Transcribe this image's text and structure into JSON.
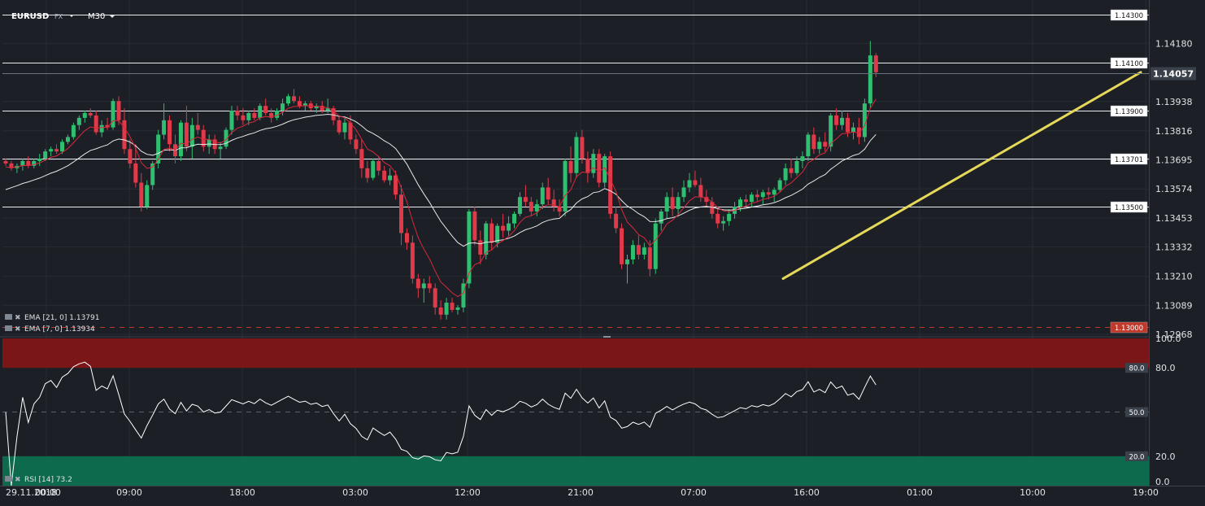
{
  "header": {
    "symbol": "EURUSD",
    "market": "FX",
    "timeframe": "M30"
  },
  "colors": {
    "background": "#1c2026",
    "grid": "#262c33",
    "bull": "#2fbf71",
    "bear": "#e0394a",
    "ema_fast": "#d9283b",
    "ema_slow": "#e8e8e8",
    "trendline": "#e6d95a",
    "rsi_overbought_zone": "#7a1518",
    "rsi_oversold_zone": "#0e6a4c",
    "axis_text": "#dfe3e8"
  },
  "indicators": {
    "ema_slow_label": "EMA [21, 0] 1.13791",
    "ema_fast_label": "EMA [7, 0] 1.13934",
    "rsi_label": "RSI [14] 73.2"
  },
  "chart_data": [
    {
      "type": "candlestick",
      "ylim": [
        1.12968,
        1.143
      ],
      "y_ticks": [
        "1.14180",
        "1.13938",
        "1.13816",
        "1.13695",
        "1.13574",
        "1.13453",
        "1.13332",
        "1.13210",
        "1.13089",
        "1.12968"
      ],
      "current_price": "1.14057",
      "levels": [
        {
          "value": 1.143,
          "label": "1.14300",
          "style": "solid"
        },
        {
          "value": 1.141,
          "label": "1.14100",
          "style": "solid"
        },
        {
          "value": 1.139,
          "label": "1.13900",
          "style": "solid"
        },
        {
          "value": 1.13701,
          "label": "1.13701",
          "style": "solid"
        },
        {
          "value": 1.135,
          "label": "1.13500",
          "style": "solid"
        },
        {
          "value": 1.13,
          "label": "1.13000",
          "style": "dashed"
        }
      ],
      "x_ticks": [
        "29.11.2018",
        "00:00",
        "09:00",
        "18:00",
        "03:00",
        "12:00",
        "21:00",
        "07:00",
        "16:00",
        "01:00",
        "10:00",
        "19:00"
      ],
      "trendline": [
        [
          1.132,
          0
        ],
        [
          1.1406,
          1
        ]
      ],
      "ohlc": [
        [
          1.1369,
          1.137,
          1.1367,
          1.1368
        ],
        [
          1.1368,
          1.1369,
          1.1365,
          1.1366
        ],
        [
          1.1366,
          1.1368,
          1.1364,
          1.1367
        ],
        [
          1.1367,
          1.137,
          1.1365,
          1.1369
        ],
        [
          1.1369,
          1.1371,
          1.1366,
          1.1367
        ],
        [
          1.1367,
          1.137,
          1.1366,
          1.1369
        ],
        [
          1.1369,
          1.1372,
          1.1367,
          1.137
        ],
        [
          1.137,
          1.1374,
          1.1369,
          1.1373
        ],
        [
          1.1373,
          1.1375,
          1.1371,
          1.1374
        ],
        [
          1.1374,
          1.1376,
          1.1372,
          1.1373
        ],
        [
          1.1373,
          1.1378,
          1.1372,
          1.1377
        ],
        [
          1.1377,
          1.138,
          1.1376,
          1.1379
        ],
        [
          1.1379,
          1.1385,
          1.1378,
          1.1384
        ],
        [
          1.1384,
          1.1388,
          1.1382,
          1.1387
        ],
        [
          1.1387,
          1.139,
          1.1385,
          1.1389
        ],
        [
          1.1389,
          1.1391,
          1.1387,
          1.1388
        ],
        [
          1.1388,
          1.139,
          1.138,
          1.1381
        ],
        [
          1.1381,
          1.1386,
          1.1379,
          1.1384
        ],
        [
          1.1384,
          1.1387,
          1.1382,
          1.1383
        ],
        [
          1.1383,
          1.1395,
          1.1382,
          1.1394
        ],
        [
          1.1394,
          1.1396,
          1.1384,
          1.1386
        ],
        [
          1.1386,
          1.1391,
          1.1372,
          1.1374
        ],
        [
          1.1374,
          1.1378,
          1.1366,
          1.1368
        ],
        [
          1.1368,
          1.1376,
          1.1358,
          1.136
        ],
        [
          1.136,
          1.1364,
          1.1348,
          1.135
        ],
        [
          1.135,
          1.1361,
          1.1349,
          1.1359
        ],
        [
          1.1359,
          1.1369,
          1.1357,
          1.1368
        ],
        [
          1.1368,
          1.1382,
          1.1366,
          1.138
        ],
        [
          1.138,
          1.1393,
          1.1378,
          1.1386
        ],
        [
          1.1386,
          1.1388,
          1.1373,
          1.1376
        ],
        [
          1.1376,
          1.138,
          1.1368,
          1.1371
        ],
        [
          1.1371,
          1.1386,
          1.1369,
          1.1385
        ],
        [
          1.1385,
          1.1392,
          1.1373,
          1.1375
        ],
        [
          1.1375,
          1.1387,
          1.137,
          1.1384
        ],
        [
          1.1384,
          1.1389,
          1.138,
          1.1382
        ],
        [
          1.1382,
          1.1384,
          1.1373,
          1.1375
        ],
        [
          1.1375,
          1.138,
          1.1372,
          1.1378
        ],
        [
          1.1378,
          1.138,
          1.1372,
          1.1374
        ],
        [
          1.1374,
          1.1377,
          1.137,
          1.1375
        ],
        [
          1.1375,
          1.1383,
          1.1374,
          1.1382
        ],
        [
          1.1382,
          1.1392,
          1.138,
          1.139
        ],
        [
          1.139,
          1.1392,
          1.1386,
          1.1388
        ],
        [
          1.1388,
          1.1391,
          1.1384,
          1.1386
        ],
        [
          1.1386,
          1.139,
          1.1384,
          1.1389
        ],
        [
          1.1389,
          1.1391,
          1.1386,
          1.1387
        ],
        [
          1.1387,
          1.1393,
          1.1386,
          1.1392
        ],
        [
          1.1392,
          1.1395,
          1.1388,
          1.1389
        ],
        [
          1.1389,
          1.1391,
          1.1385,
          1.1387
        ],
        [
          1.1387,
          1.1391,
          1.1386,
          1.139
        ],
        [
          1.139,
          1.1395,
          1.1388,
          1.1393
        ],
        [
          1.1393,
          1.1397,
          1.1392,
          1.1396
        ],
        [
          1.1396,
          1.1399,
          1.1393,
          1.1394
        ],
        [
          1.1394,
          1.1396,
          1.1391,
          1.1392
        ],
        [
          1.1392,
          1.1394,
          1.139,
          1.1393
        ],
        [
          1.1393,
          1.1394,
          1.139,
          1.1391
        ],
        [
          1.1391,
          1.1393,
          1.1389,
          1.1392
        ],
        [
          1.1392,
          1.1394,
          1.1389,
          1.139
        ],
        [
          1.139,
          1.1395,
          1.1389,
          1.1391
        ],
        [
          1.1391,
          1.1392,
          1.1384,
          1.1386
        ],
        [
          1.1386,
          1.1388,
          1.138,
          1.1381
        ],
        [
          1.1381,
          1.1387,
          1.1378,
          1.1385
        ],
        [
          1.1385,
          1.1388,
          1.1376,
          1.1378
        ],
        [
          1.1378,
          1.138,
          1.1372,
          1.1374
        ],
        [
          1.1374,
          1.1378,
          1.1362,
          1.1366
        ],
        [
          1.1366,
          1.1369,
          1.136,
          1.1362
        ],
        [
          1.1362,
          1.137,
          1.1361,
          1.1369
        ],
        [
          1.1369,
          1.1371,
          1.1363,
          1.1365
        ],
        [
          1.1365,
          1.1367,
          1.136,
          1.1361
        ],
        [
          1.1361,
          1.1366,
          1.1359,
          1.1363
        ],
        [
          1.1363,
          1.1365,
          1.1353,
          1.1355
        ],
        [
          1.1355,
          1.1359,
          1.1334,
          1.1339
        ],
        [
          1.1339,
          1.1341,
          1.1332,
          1.1335
        ],
        [
          1.1335,
          1.1338,
          1.1318,
          1.132
        ],
        [
          1.132,
          1.1322,
          1.1312,
          1.1316
        ],
        [
          1.1316,
          1.132,
          1.131,
          1.1318
        ],
        [
          1.1318,
          1.1321,
          1.1314,
          1.1316
        ],
        [
          1.1316,
          1.1318,
          1.1305,
          1.1308
        ],
        [
          1.1308,
          1.1311,
          1.1303,
          1.1305
        ],
        [
          1.1305,
          1.1312,
          1.1303,
          1.131
        ],
        [
          1.131,
          1.1312,
          1.1306,
          1.1307
        ],
        [
          1.1307,
          1.1309,
          1.1305,
          1.1308
        ],
        [
          1.1308,
          1.132,
          1.1306,
          1.1318
        ],
        [
          1.1318,
          1.1349,
          1.1316,
          1.1348
        ],
        [
          1.1348,
          1.135,
          1.1334,
          1.1336
        ],
        [
          1.1336,
          1.134,
          1.1326,
          1.133
        ],
        [
          1.133,
          1.1344,
          1.1328,
          1.1343
        ],
        [
          1.1343,
          1.1345,
          1.1332,
          1.1335
        ],
        [
          1.1335,
          1.1343,
          1.1333,
          1.1342
        ],
        [
          1.1342,
          1.1347,
          1.1337,
          1.134
        ],
        [
          1.134,
          1.1346,
          1.1338,
          1.1343
        ],
        [
          1.1343,
          1.1348,
          1.1341,
          1.1347
        ],
        [
          1.1347,
          1.1356,
          1.1346,
          1.1354
        ],
        [
          1.1354,
          1.1359,
          1.135,
          1.1352
        ],
        [
          1.1352,
          1.1354,
          1.1346,
          1.1348
        ],
        [
          1.1348,
          1.1353,
          1.1346,
          1.1351
        ],
        [
          1.1351,
          1.136,
          1.1349,
          1.1358
        ],
        [
          1.1358,
          1.1362,
          1.1351,
          1.1353
        ],
        [
          1.1353,
          1.1357,
          1.1348,
          1.135
        ],
        [
          1.135,
          1.1353,
          1.1346,
          1.1348
        ],
        [
          1.1348,
          1.137,
          1.1346,
          1.1369
        ],
        [
          1.1369,
          1.1375,
          1.136,
          1.1364
        ],
        [
          1.1364,
          1.1381,
          1.1362,
          1.1379
        ],
        [
          1.1379,
          1.1382,
          1.1368,
          1.137
        ],
        [
          1.137,
          1.1373,
          1.136,
          1.1364
        ],
        [
          1.1364,
          1.1374,
          1.1362,
          1.1372
        ],
        [
          1.1372,
          1.1374,
          1.1358,
          1.136
        ],
        [
          1.136,
          1.1372,
          1.1358,
          1.1371
        ],
        [
          1.1371,
          1.1373,
          1.1345,
          1.1347
        ],
        [
          1.1347,
          1.135,
          1.1339,
          1.1341
        ],
        [
          1.1341,
          1.1343,
          1.1324,
          1.1326
        ],
        [
          1.1326,
          1.133,
          1.1318,
          1.1328
        ],
        [
          1.1328,
          1.1336,
          1.1326,
          1.1334
        ],
        [
          1.1334,
          1.1338,
          1.1328,
          1.133
        ],
        [
          1.133,
          1.1335,
          1.1328,
          1.1333
        ],
        [
          1.1333,
          1.1336,
          1.1321,
          1.1324
        ],
        [
          1.1324,
          1.1345,
          1.1322,
          1.1343
        ],
        [
          1.1343,
          1.1349,
          1.134,
          1.1348
        ],
        [
          1.1348,
          1.1356,
          1.1345,
          1.1354
        ],
        [
          1.1354,
          1.1358,
          1.1346,
          1.1349
        ],
        [
          1.1349,
          1.1356,
          1.1347,
          1.1354
        ],
        [
          1.1354,
          1.1361,
          1.1352,
          1.1358
        ],
        [
          1.1358,
          1.1364,
          1.1356,
          1.1361
        ],
        [
          1.1361,
          1.1365,
          1.1358,
          1.1359
        ],
        [
          1.1359,
          1.1362,
          1.1352,
          1.1354
        ],
        [
          1.1354,
          1.1357,
          1.135,
          1.1352
        ],
        [
          1.1352,
          1.1354,
          1.1345,
          1.1347
        ],
        [
          1.1347,
          1.1349,
          1.1341,
          1.1343
        ],
        [
          1.1343,
          1.1346,
          1.134,
          1.1344
        ],
        [
          1.1344,
          1.1349,
          1.1342,
          1.1347
        ],
        [
          1.1347,
          1.1352,
          1.1345,
          1.135
        ],
        [
          1.135,
          1.1354,
          1.1348,
          1.1353
        ],
        [
          1.1353,
          1.1355,
          1.135,
          1.1352
        ],
        [
          1.1352,
          1.1356,
          1.135,
          1.1355
        ],
        [
          1.1355,
          1.1357,
          1.1352,
          1.1354
        ],
        [
          1.1354,
          1.1357,
          1.1351,
          1.1356
        ],
        [
          1.1356,
          1.1358,
          1.1353,
          1.1355
        ],
        [
          1.1355,
          1.1358,
          1.1352,
          1.1357
        ],
        [
          1.1357,
          1.1362,
          1.1356,
          1.1361
        ],
        [
          1.1361,
          1.1368,
          1.1359,
          1.1366
        ],
        [
          1.1366,
          1.137,
          1.1362,
          1.1364
        ],
        [
          1.1364,
          1.1371,
          1.1363,
          1.1369
        ],
        [
          1.1369,
          1.1373,
          1.1366,
          1.1371
        ],
        [
          1.1371,
          1.1381,
          1.1369,
          1.138
        ],
        [
          1.138,
          1.1383,
          1.1372,
          1.1374
        ],
        [
          1.1374,
          1.1379,
          1.1372,
          1.1377
        ],
        [
          1.1377,
          1.1381,
          1.1373,
          1.1375
        ],
        [
          1.1375,
          1.1389,
          1.1373,
          1.1388
        ],
        [
          1.1388,
          1.1391,
          1.1382,
          1.1384
        ],
        [
          1.1384,
          1.139,
          1.1382,
          1.1387
        ],
        [
          1.1387,
          1.1389,
          1.1379,
          1.1381
        ],
        [
          1.1381,
          1.1385,
          1.1378,
          1.1383
        ],
        [
          1.1383,
          1.1387,
          1.1376,
          1.1379
        ],
        [
          1.1379,
          1.1395,
          1.1377,
          1.1393
        ],
        [
          1.1393,
          1.1419,
          1.1391,
          1.1413
        ],
        [
          1.1413,
          1.1414,
          1.1404,
          1.1406
        ]
      ],
      "ema_fast_last": 1.13934,
      "ema_slow_last": 1.13791
    },
    {
      "type": "line",
      "name": "RSI [14]",
      "ylim": [
        0,
        100
      ],
      "y_ticks": [
        "100.0",
        "80.0",
        "20.0",
        "0.0"
      ],
      "levels": [
        {
          "value": 80,
          "label": "80.0"
        },
        {
          "value": 50,
          "label": "50.0"
        },
        {
          "value": 20,
          "label": "20.0"
        }
      ],
      "last_value": 73.2
    }
  ]
}
